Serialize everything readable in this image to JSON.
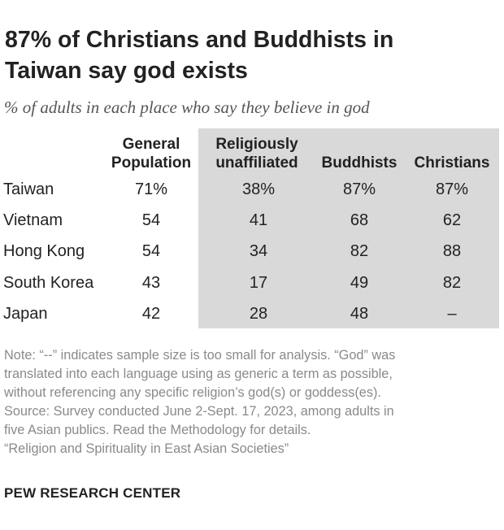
{
  "title": {
    "line1": "87% of Christians and Buddhists in",
    "line2": "Taiwan say god exists"
  },
  "subtitle": "% of adults in each place who say they believe in god",
  "chart_data": {
    "type": "table",
    "columns": [
      {
        "line1": "General",
        "line2": "Population"
      },
      {
        "line1": "Religiously",
        "line2": "unaffiliated"
      },
      {
        "line1": "",
        "line2": "Buddhists"
      },
      {
        "line1": "",
        "line2": "Christians"
      }
    ],
    "shaded_columns": [
      "Religiously unaffiliated",
      "Buddhists",
      "Christians"
    ],
    "shade_color": "#d9d9d9",
    "rows": [
      {
        "label": "Taiwan",
        "values": [
          "71%",
          "38%",
          "87%",
          "87%"
        ]
      },
      {
        "label": "Vietnam",
        "values": [
          "54",
          "41",
          "68",
          "62"
        ]
      },
      {
        "label": "Hong Kong",
        "values": [
          "54",
          "34",
          "82",
          "88"
        ]
      },
      {
        "label": "South Korea",
        "values": [
          "43",
          "17",
          "49",
          "82"
        ]
      },
      {
        "label": "Japan",
        "values": [
          "42",
          "28",
          "48",
          "–"
        ]
      }
    ]
  },
  "notes": [
    "Note: “--” indicates sample size is too small for analysis. “God” was",
    "translated into each language using as generic a term as possible,",
    "without referencing any specific religion’s god(s) or goddess(es).",
    "Source: Survey conducted June 2-Sept. 17, 2023, among adults in",
    "five Asian publics. Read the Methodology for details.",
    "“Religion and Spirituality in East Asian Societies”"
  ],
  "brand": "PEW RESEARCH CENTER"
}
